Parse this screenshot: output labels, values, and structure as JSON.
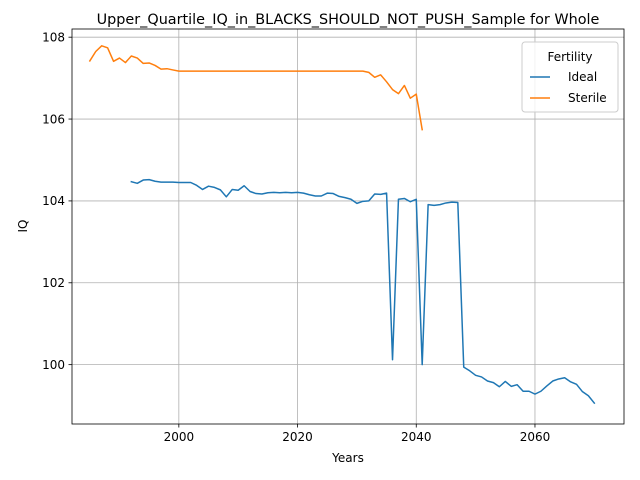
{
  "chart_data": {
    "type": "line",
    "title": "Upper_Quartile_IQ_in_BLACKS_SHOULD_NOT_PUSH_Sample for Whole",
    "xlabel": "Years",
    "ylabel": "IQ",
    "xlim": [
      1982,
      2075
    ],
    "ylim": [
      98.55,
      108.2
    ],
    "xticks": [
      2000,
      2020,
      2040,
      2060
    ],
    "yticks": [
      100,
      102,
      104,
      106,
      108
    ],
    "grid": true,
    "legend": {
      "title": "Fertility",
      "placement": "top-right"
    },
    "series": [
      {
        "name": "Ideal",
        "color": "#1f77b4",
        "x": [
          1992,
          1993,
          1994,
          1995,
          1996,
          1997,
          1998,
          1999,
          2000,
          2001,
          2002,
          2003,
          2004,
          2005,
          2006,
          2007,
          2008,
          2009,
          2010,
          2011,
          2012,
          2013,
          2014,
          2015,
          2016,
          2017,
          2018,
          2019,
          2020,
          2021,
          2022,
          2023,
          2024,
          2025,
          2026,
          2027,
          2028,
          2029,
          2030,
          2031,
          2032,
          2033,
          2034,
          2035,
          2036,
          2037,
          2038,
          2039,
          2040,
          2041,
          2042,
          2043,
          2044,
          2045,
          2046,
          2047,
          2048,
          2049,
          2050,
          2051,
          2052,
          2053,
          2054,
          2055,
          2056,
          2057,
          2058,
          2059,
          2060,
          2061,
          2062,
          2063,
          2064,
          2065,
          2066,
          2067,
          2068,
          2069,
          2070
        ],
        "values": [
          104.47,
          104.43,
          104.51,
          104.52,
          104.48,
          104.46,
          104.46,
          104.46,
          104.45,
          104.45,
          104.45,
          104.38,
          104.28,
          104.36,
          104.33,
          104.27,
          104.1,
          104.28,
          104.26,
          104.37,
          104.23,
          104.18,
          104.17,
          104.2,
          104.21,
          104.2,
          104.21,
          104.2,
          104.21,
          104.19,
          104.15,
          104.12,
          104.12,
          104.19,
          104.18,
          104.11,
          104.08,
          104.04,
          103.94,
          103.99,
          104.0,
          104.17,
          104.16,
          104.19,
          100.12,
          104.04,
          104.06,
          103.98,
          104.04,
          100.0,
          103.91,
          103.89,
          103.91,
          103.95,
          103.97,
          103.96,
          99.94,
          99.85,
          99.74,
          99.7,
          99.6,
          99.56,
          99.46,
          99.59,
          99.47,
          99.51,
          99.35,
          99.35,
          99.28,
          99.35,
          99.48,
          99.6,
          99.65,
          99.68,
          99.58,
          99.52,
          99.34,
          99.24,
          99.06
        ]
      },
      {
        "name": "Sterile",
        "color": "#ff7f0e",
        "x": [
          1985,
          1986,
          1987,
          1988,
          1989,
          1990,
          1991,
          1992,
          1993,
          1994,
          1995,
          1996,
          1997,
          1998,
          1999,
          2000,
          2001,
          2002,
          2003,
          2004,
          2005,
          2006,
          2007,
          2008,
          2009,
          2010,
          2011,
          2012,
          2013,
          2014,
          2015,
          2016,
          2017,
          2018,
          2019,
          2020,
          2021,
          2022,
          2023,
          2024,
          2025,
          2026,
          2027,
          2028,
          2029,
          2030,
          2031,
          2032,
          2033,
          2034,
          2035,
          2036,
          2037,
          2038,
          2039,
          2040,
          2041
        ],
        "values": [
          107.42,
          107.65,
          107.79,
          107.74,
          107.41,
          107.49,
          107.38,
          107.54,
          107.49,
          107.36,
          107.37,
          107.31,
          107.22,
          107.23,
          107.2,
          107.17,
          107.17,
          107.17,
          107.17,
          107.17,
          107.17,
          107.17,
          107.17,
          107.17,
          107.17,
          107.17,
          107.17,
          107.17,
          107.17,
          107.17,
          107.17,
          107.17,
          107.17,
          107.17,
          107.17,
          107.17,
          107.17,
          107.17,
          107.17,
          107.17,
          107.17,
          107.17,
          107.17,
          107.17,
          107.17,
          107.17,
          107.17,
          107.14,
          107.02,
          107.08,
          106.91,
          106.72,
          106.62,
          106.82,
          106.51,
          106.61,
          105.74
        ]
      }
    ]
  }
}
